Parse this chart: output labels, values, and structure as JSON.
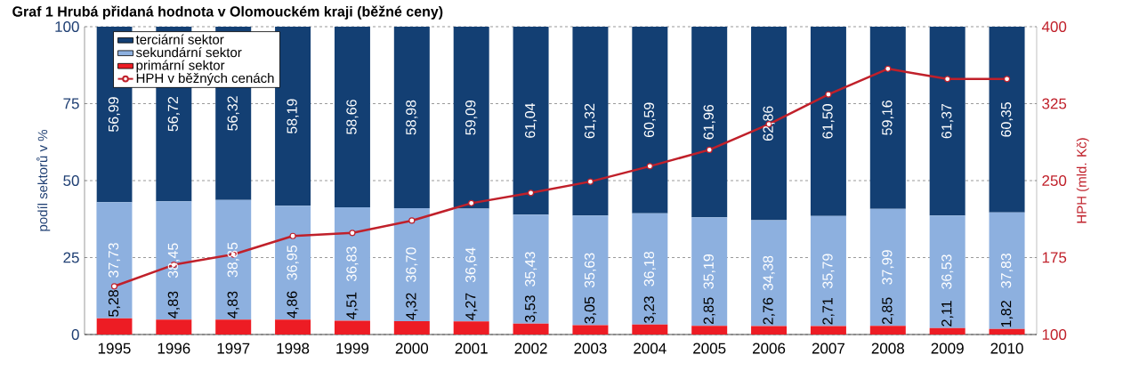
{
  "chart_data": {
    "type": "bar",
    "title": "Graf 1 Hrubá přidaná hodnota v Olomouckém kraji (běžné ceny)",
    "ylabel": "podíl sektorů v %",
    "y2label": "HPH  (mld. Kč)",
    "categories": [
      "1995",
      "1996",
      "1997",
      "1998",
      "1999",
      "2000",
      "2001",
      "2002",
      "2003",
      "2004",
      "2005",
      "2006",
      "2007",
      "2008",
      "2009",
      "2010"
    ],
    "stacked": true,
    "grid": "y",
    "legend": "top left",
    "ylim": [
      0,
      100
    ],
    "yticks": [
      0,
      25,
      50,
      75,
      100
    ],
    "y2lim": [
      100,
      400
    ],
    "y2ticks": [
      100,
      175,
      250,
      325,
      400
    ],
    "series": [
      {
        "name": "primární sektor",
        "color": "#ed1c24",
        "values": [
          5.28,
          4.83,
          4.83,
          4.86,
          4.51,
          4.32,
          4.27,
          3.53,
          3.05,
          3.23,
          2.85,
          2.76,
          2.71,
          2.85,
          2.11,
          1.82
        ],
        "value_labels": [
          "5,28",
          "4,83",
          "4,83",
          "4,86",
          "4,51",
          "4,32",
          "4,27",
          "3,53",
          "3,05",
          "3,23",
          "2,85",
          "2,76",
          "2,71",
          "2,85",
          "2,11",
          "1,82"
        ]
      },
      {
        "name": "sekundární sektor",
        "color": "#8db0df",
        "values": [
          37.73,
          38.45,
          38.85,
          36.95,
          36.83,
          36.7,
          36.64,
          35.43,
          35.63,
          36.18,
          35.19,
          34.38,
          35.79,
          37.99,
          36.53,
          37.83
        ],
        "value_labels": [
          "37,73",
          "38,45",
          "38,85",
          "36,95",
          "36,83",
          "36,70",
          "36,64",
          "35,43",
          "35,63",
          "36,18",
          "35,19",
          "34,38",
          "35,79",
          "37,99",
          "36,53",
          "37,83"
        ]
      },
      {
        "name": "terciární sektor",
        "color": "#133f73",
        "values": [
          56.99,
          56.72,
          56.32,
          58.19,
          58.66,
          58.98,
          59.09,
          61.04,
          61.32,
          60.59,
          61.96,
          62.86,
          61.5,
          59.16,
          61.37,
          60.35
        ],
        "value_labels": [
          "56,99",
          "56,72",
          "56,32",
          "58,19",
          "58,66",
          "58,98",
          "59,09",
          "61,04",
          "61,32",
          "60,59",
          "61,96",
          "62,86",
          "61,50",
          "59,16",
          "61,37",
          "60,35"
        ]
      },
      {
        "name": "HPH v běžných cenách",
        "type": "line",
        "axis": "y2",
        "marker": "circle",
        "color": "#c0202a",
        "values": [
          147,
          168,
          178,
          196,
          199,
          211,
          228,
          238,
          249,
          264,
          280,
          305,
          334,
          359,
          349,
          349
        ]
      }
    ]
  }
}
